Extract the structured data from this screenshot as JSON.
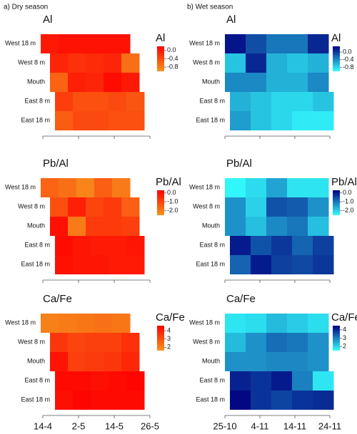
{
  "panels": [
    {
      "label": "a) Dry season",
      "xticks": [
        "14-4",
        "2-5",
        "14-5",
        "26-5"
      ]
    },
    {
      "label": "b) Wet season",
      "xticks": [
        "25-10",
        "4-11",
        "14-11",
        "24-11"
      ]
    }
  ],
  "chart_data": [
    {
      "type": "heatmap",
      "title": "Al",
      "colorbar_label": "Al",
      "rows": [
        "West 18 m",
        "West 8 m",
        "Mouth",
        "East 8 m",
        "East 18 m"
      ],
      "clim": [
        -1,
        0.2
      ],
      "cticks": [
        {
          "value": 0,
          "label": "0.0"
        },
        -0.4,
        -0.8
      ],
      "colors": [
        "#f7941d",
        "#ff0000"
      ],
      "values": [
        [
          0,
          0.05,
          0.05,
          0.05,
          0.05
        ],
        [
          -0.1,
          -0.2,
          -0.15,
          -0.1,
          -0.7
        ],
        [
          -0.6,
          -0.05,
          -0.1,
          0.1,
          0
        ],
        [
          -0.3,
          -0.45,
          -0.45,
          -0.4,
          -0.5
        ],
        [
          -0.55,
          -0.4,
          -0.4,
          -0.45,
          -0.45
        ]
      ]
    },
    {
      "type": "heatmap",
      "title": "Pb/Al",
      "colorbar_label": "Pb/Al",
      "rows": [
        "West 18 m",
        "West 8 m",
        "Mouth",
        "East 8 m",
        "East 18 m"
      ],
      "clim": [
        -2.5,
        0.3
      ],
      "cticks": [
        {
          "value": 0,
          "label": "0.0"
        },
        {
          "value": -1,
          "label": "-1.0"
        },
        {
          "value": -2,
          "label": "-2.0"
        }
      ],
      "colors": [
        "#f7941d",
        "#ff0000"
      ],
      "values": [
        [
          -1.6,
          -1.8,
          -2.2,
          -1.5,
          -2.0
        ],
        [
          -1.2,
          -0.3,
          -1.0,
          -0.8,
          -1.5
        ],
        [
          0,
          -2.0,
          -0.8,
          -0.8,
          -0.9
        ],
        [
          0.1,
          -0.1,
          -0.2,
          -0.2,
          -0.1
        ],
        [
          0,
          -0.1,
          -0.1,
          -0.2,
          -0.2
        ]
      ]
    },
    {
      "type": "heatmap",
      "title": "Ca/Fe",
      "colorbar_label": "Ca/Fe",
      "rows": [
        "West 18 m",
        "West 8 m",
        "Mouth",
        "East 8 m",
        "East 18 m"
      ],
      "clim": [
        1.6,
        4.6
      ],
      "cticks": [
        4,
        3,
        2
      ],
      "colors": [
        "#f7941d",
        "#ff0000"
      ],
      "values": [
        [
          2,
          2.1,
          2.2,
          2.3,
          2.2
        ],
        [
          3.5,
          3.2,
          3.3,
          3.3,
          3.6
        ],
        [
          4.2,
          3.3,
          3.4,
          3.5,
          3.8
        ],
        [
          4.4,
          4.4,
          4.3,
          4.4,
          4.5
        ],
        [
          4.3,
          4.5,
          4.4,
          4.4,
          4.4
        ]
      ]
    },
    {
      "type": "heatmap",
      "title": "Al",
      "colorbar_label": "Al",
      "rows": [
        "West 18 m",
        "West 8 m",
        "Mouth",
        "East 8 m",
        "East 18 m"
      ],
      "clim": [
        -1,
        0.3
      ],
      "cticks": [
        {
          "value": 0,
          "label": "0.0"
        },
        -0.4,
        -0.8
      ],
      "colors": [
        "#33ffff",
        "#00007f"
      ],
      "values": [
        [
          0.2,
          -0.1,
          -0.3,
          -0.3,
          0.1
        ],
        [
          -0.7,
          0.1,
          -0.6,
          -0.7,
          -0.6
        ],
        [
          -0.4,
          -0.4,
          -0.6,
          -0.6,
          -0.4
        ],
        [
          -0.6,
          -0.7,
          -0.8,
          -0.8,
          -0.7
        ],
        [
          -0.5,
          -0.7,
          -0.8,
          -0.9,
          -0.9
        ]
      ]
    },
    {
      "type": "heatmap",
      "title": "Pb/Al",
      "colorbar_label": "Pb/Al",
      "rows": [
        "West 18 m",
        "West 8 m",
        "Mouth",
        "East 8 m",
        "East 18 m"
      ],
      "clim": [
        -2.5,
        0.3
      ],
      "cticks": [
        {
          "value": 0,
          "label": "0.0"
        },
        {
          "value": -1,
          "label": "-1.0"
        },
        {
          "value": -2,
          "label": "-2.0"
        }
      ],
      "colors": [
        "#33ffff",
        "#00007f"
      ],
      "values": [
        [
          -2.4,
          -2.1,
          -1.5,
          -2.2,
          -2.2
        ],
        [
          -1.3,
          -2.0,
          -0.6,
          -0.7,
          -1.3
        ],
        [
          -1.3,
          -1.8,
          -1.2,
          -1.0,
          -1.8
        ],
        [
          0,
          -0.6,
          -0.3,
          -0.8,
          -0.4
        ],
        [
          -0.8,
          0,
          -0.4,
          -0.5,
          -0.3
        ]
      ]
    },
    {
      "type": "heatmap",
      "title": "Ca/Fe",
      "colorbar_label": "Ca/Fe",
      "rows": [
        "West 18 m",
        "West 8 m",
        "Mouth",
        "East 8 m",
        "East 18 m"
      ],
      "clim": [
        1.5,
        4.5
      ],
      "cticks": [
        4,
        3,
        2
      ],
      "colors": [
        "#33ffff",
        "#00007f"
      ],
      "values": [
        [
          1.8,
          1.9,
          2.3,
          2.1,
          1.9
        ],
        [
          2.3,
          2.8,
          3.2,
          3.1,
          2.8
        ],
        [
          2.8,
          2.8,
          2.9,
          2.9,
          2.8
        ],
        [
          4.1,
          3.9,
          4.2,
          3.0,
          1.8
        ],
        [
          4.4,
          3.9,
          3.7,
          3.9,
          4.0
        ]
      ]
    }
  ]
}
